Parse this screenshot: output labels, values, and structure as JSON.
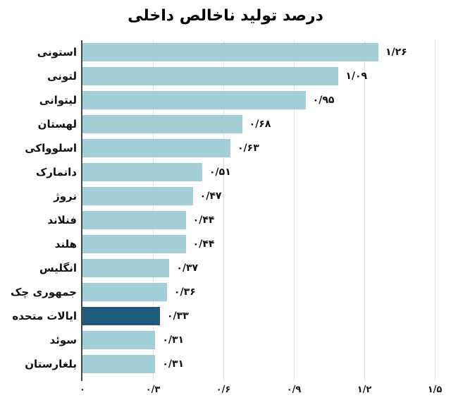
{
  "title": "درصد تولید ناخالص داخلی",
  "chart_data": {
    "type": "bar",
    "orientation": "horizontal",
    "title": "درصد تولید ناخالص داخلی",
    "categories": [
      "استونی",
      "لتونی",
      "لیتوانی",
      "لهستان",
      "اسلوواکی",
      "دانمارک",
      "نروژ",
      "فنلاند",
      "هلند",
      "انگلیس",
      "جمهوری چک",
      "ایالات متحده",
      "سوئد",
      "بلغارستان"
    ],
    "values": [
      1.26,
      1.09,
      0.95,
      0.68,
      0.63,
      0.51,
      0.47,
      0.44,
      0.44,
      0.37,
      0.36,
      0.33,
      0.31,
      0.31
    ],
    "value_labels": [
      "۱/۲۶",
      "۱/۰۹",
      "۰/۹۵",
      "۰/۶۸",
      "۰/۶۳",
      "۰/۵۱",
      "۰/۴۷",
      "۰/۴۴",
      "۰/۴۴",
      "۰/۳۷",
      "۰/۳۶",
      "۰/۳۳",
      "۰/۳۱",
      "۰/۳۱"
    ],
    "highlight_index": 11,
    "highlight_category": "ایالات متحده",
    "x_ticks": [
      "۰",
      "۰/۳",
      "۰/۶",
      "۰/۹",
      "۱/۲",
      "۱/۵"
    ],
    "x_tick_values": [
      0,
      0.3,
      0.6,
      0.9,
      1.2,
      1.5
    ],
    "xlim": [
      0,
      1.5
    ],
    "grid": "vertical",
    "legend": "none",
    "bar_color": "#a2ced8",
    "highlight_color": "#1e5c7d",
    "axis_color": "#474747",
    "gridline_color": "#e3e3e3"
  }
}
